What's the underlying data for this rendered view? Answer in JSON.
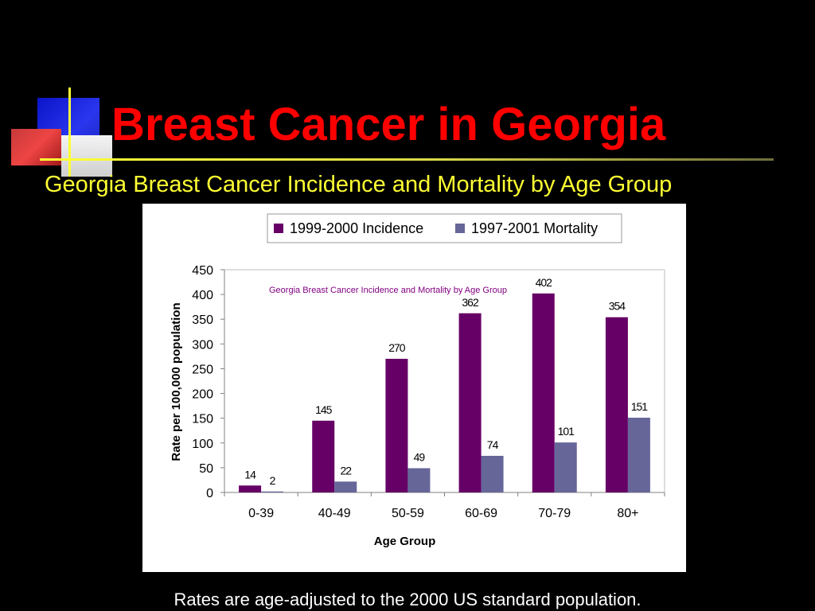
{
  "slide": {
    "title": "Breast Cancer in Georgia",
    "subtitle": "Georgia Breast Cancer Incidence and Mortality by Age Group",
    "footnote": "Rates are age-adjusted to the 2000 US standard population."
  },
  "colors": {
    "background": "#000000",
    "title": "#ff0000",
    "subtitle": "#ffff33",
    "incidence": "#660066",
    "mortality": "#666699",
    "chart_inner_title": "#800080"
  },
  "chart_data": {
    "type": "bar",
    "title": "Georgia Breast Cancer Incidence and Mortality by Age Group",
    "xlabel": "Age Group",
    "ylabel": "Rate per 100,000 population",
    "categories": [
      "0-39",
      "40-49",
      "50-59",
      "60-69",
      "70-79",
      "80+"
    ],
    "series": [
      {
        "name": "1999-2000 Incidence",
        "values": [
          14,
          145,
          270,
          362,
          402,
          354
        ]
      },
      {
        "name": "1997-2001 Mortality",
        "values": [
          2,
          22,
          49,
          74,
          101,
          151
        ]
      }
    ],
    "ylim": [
      0,
      450
    ],
    "yticks": [
      0,
      50,
      100,
      150,
      200,
      250,
      300,
      350,
      400,
      450
    ],
    "grid": false,
    "legend_position": "top"
  }
}
